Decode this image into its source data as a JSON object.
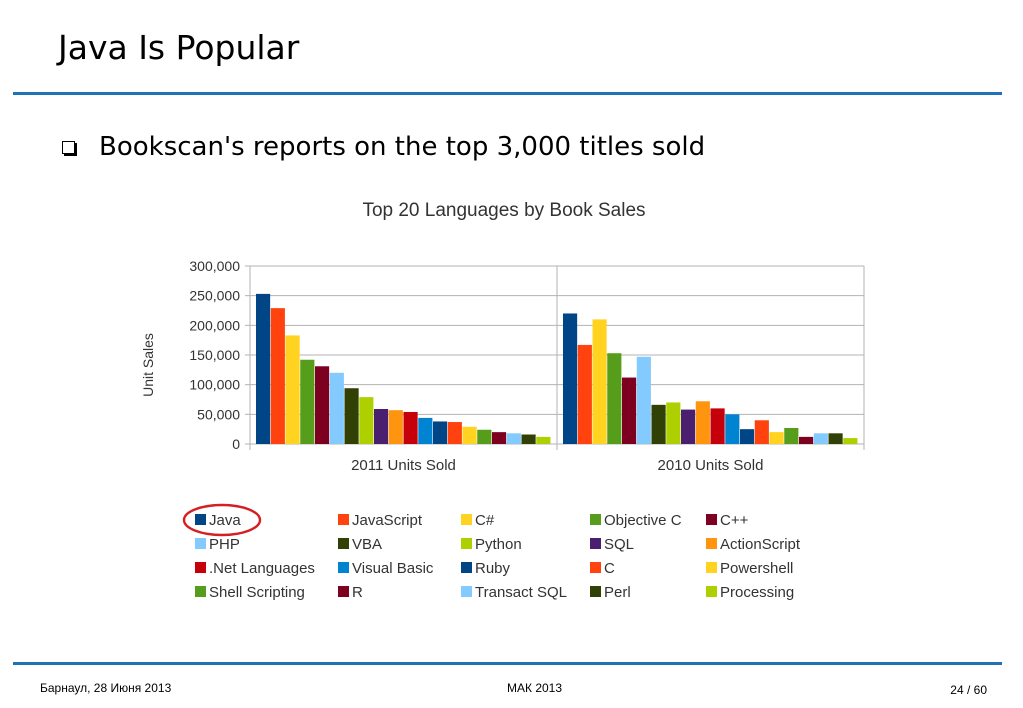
{
  "slide": {
    "title": "Java Is Popular",
    "bullet": "Bookscan's reports on the top 3,000 titles sold",
    "rule_color": "#1f72b8"
  },
  "footer": {
    "left": "Барнаул, 28 Июня 2013",
    "center": "МАК 2013",
    "page": "24 / 60"
  },
  "chart_data": {
    "type": "bar",
    "title": "Top 20 Languages by Book Sales",
    "ylabel": "Unit Sales",
    "xlabel": "",
    "ylim": [
      0,
      300000
    ],
    "yticks": [
      "0",
      "50,000",
      "100,000",
      "150,000",
      "200,000",
      "250,000",
      "300,000"
    ],
    "grid": true,
    "legend_position": "bottom",
    "highlighted_legend_entry": "Java",
    "highlight_color": "#d42020",
    "categories": [
      "2011 Units Sold",
      "2010 Units Sold"
    ],
    "series": [
      {
        "name": "Java",
        "color": "#004586",
        "values": [
          253000,
          220000
        ]
      },
      {
        "name": "JavaScript",
        "color": "#ff420e",
        "values": [
          229000,
          167000
        ]
      },
      {
        "name": "C#",
        "color": "#ffd320",
        "values": [
          183000,
          210000
        ]
      },
      {
        "name": "Objective C",
        "color": "#579d1c",
        "values": [
          142000,
          153000
        ]
      },
      {
        "name": "C++",
        "color": "#7e0021",
        "values": [
          131000,
          112000
        ]
      },
      {
        "name": "PHP",
        "color": "#83caff",
        "values": [
          120000,
          147000
        ]
      },
      {
        "name": "VBA",
        "color": "#314004",
        "values": [
          94000,
          66000
        ]
      },
      {
        "name": "Python",
        "color": "#aecf00",
        "values": [
          79000,
          70000
        ]
      },
      {
        "name": "SQL",
        "color": "#4b1f6f",
        "values": [
          59000,
          58000
        ]
      },
      {
        "name": "ActionScript",
        "color": "#ff950e",
        "values": [
          57000,
          72000
        ]
      },
      {
        "name": ".Net Languages",
        "color": "#c5000b",
        "values": [
          54000,
          60000
        ]
      },
      {
        "name": "Visual Basic",
        "color": "#0084d1",
        "values": [
          44000,
          50000
        ]
      },
      {
        "name": "Ruby",
        "color": "#004586",
        "values": [
          38000,
          25000
        ]
      },
      {
        "name": "C",
        "color": "#ff420e",
        "values": [
          37000,
          40000
        ]
      },
      {
        "name": "Powershell",
        "color": "#ffd320",
        "values": [
          29000,
          20000
        ]
      },
      {
        "name": "Shell Scripting",
        "color": "#579d1c",
        "values": [
          24000,
          27000
        ]
      },
      {
        "name": "R",
        "color": "#7e0021",
        "values": [
          20000,
          12000
        ]
      },
      {
        "name": "Transact SQL",
        "color": "#83caff",
        "values": [
          18000,
          18000
        ]
      },
      {
        "name": "Perl",
        "color": "#314004",
        "values": [
          16000,
          18000
        ]
      },
      {
        "name": "Processing",
        "color": "#aecf00",
        "values": [
          12000,
          10000
        ]
      }
    ]
  }
}
